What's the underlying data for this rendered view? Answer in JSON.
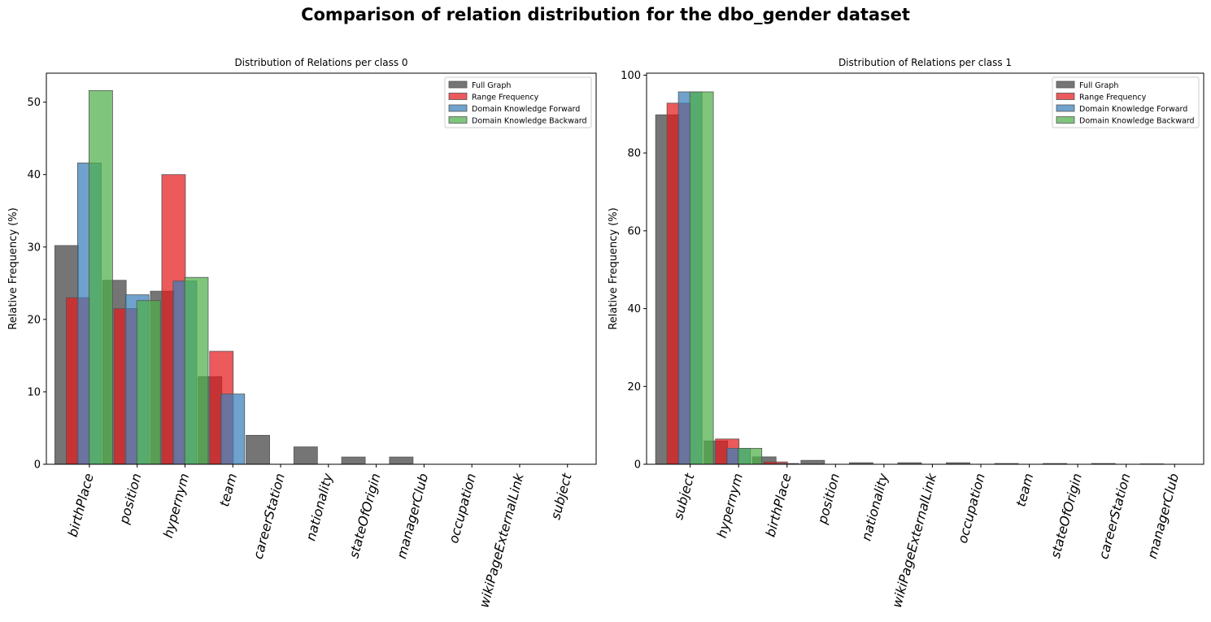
{
  "figure_title": "Comparison of relation distribution for the dbo_gender dataset",
  "colors": {
    "Full Graph": "#404040",
    "Range Frequency": "#e41a1c",
    "Domain Knowledge Forward": "#377eb8",
    "Domain Knowledge Backward": "#4daf4a"
  },
  "chart_data": [
    {
      "type": "bar",
      "title": "Distribution of Relations per class 0",
      "ylabel": "Relative Frequency (%)",
      "xlabel": "",
      "ylim": [
        0,
        54
      ],
      "yticks": [
        0,
        10,
        20,
        30,
        40,
        50
      ],
      "legend_position": "top-right",
      "categories": [
        "birthPlace",
        "position",
        "hypernym",
        "team",
        "careerStation",
        "nationality",
        "stateOfOrigin",
        "managerClub",
        "occupation",
        "wikiPageExternalLink",
        "subject"
      ],
      "series": [
        {
          "name": "Full Graph",
          "values": [
            30.2,
            25.4,
            23.9,
            12.1,
            4.0,
            2.4,
            1.0,
            1.0,
            0,
            0,
            0
          ]
        },
        {
          "name": "Range Frequency",
          "values": [
            23.0,
            21.5,
            40.0,
            15.6,
            0,
            0,
            0,
            0,
            0,
            0,
            0
          ]
        },
        {
          "name": "Domain Knowledge Forward",
          "values": [
            41.6,
            23.4,
            25.3,
            9.7,
            0,
            0,
            0,
            0,
            0,
            0,
            0
          ]
        },
        {
          "name": "Domain Knowledge Backward",
          "values": [
            51.6,
            22.6,
            25.8,
            0,
            0,
            0,
            0,
            0,
            0,
            0,
            0
          ]
        }
      ]
    },
    {
      "type": "bar",
      "title": "Distribution of Relations per class 1",
      "ylabel": "Relative Frequency (%)",
      "xlabel": "",
      "ylim": [
        0,
        100.5
      ],
      "yticks": [
        0,
        20,
        40,
        60,
        80,
        100
      ],
      "legend_position": "top-right",
      "categories": [
        "subject",
        "hypernym",
        "birthPlace",
        "position",
        "nationality",
        "wikiPageExternalLink",
        "occupation",
        "team",
        "stateOfOrigin",
        "careerStation",
        "managerClub"
      ],
      "series": [
        {
          "name": "Full Graph",
          "values": [
            89.8,
            6.0,
            1.9,
            1.0,
            0.4,
            0.4,
            0.4,
            0.2,
            0.2,
            0.2,
            0.1
          ]
        },
        {
          "name": "Range Frequency",
          "values": [
            92.8,
            6.5,
            0.6,
            0,
            0,
            0,
            0,
            0,
            0,
            0,
            0
          ]
        },
        {
          "name": "Domain Knowledge Forward",
          "values": [
            95.7,
            4.1,
            0.2,
            0,
            0,
            0,
            0,
            0,
            0,
            0,
            0
          ]
        },
        {
          "name": "Domain Knowledge Backward",
          "values": [
            95.7,
            4.1,
            0,
            0,
            0,
            0,
            0,
            0,
            0,
            0,
            0
          ]
        }
      ]
    }
  ]
}
